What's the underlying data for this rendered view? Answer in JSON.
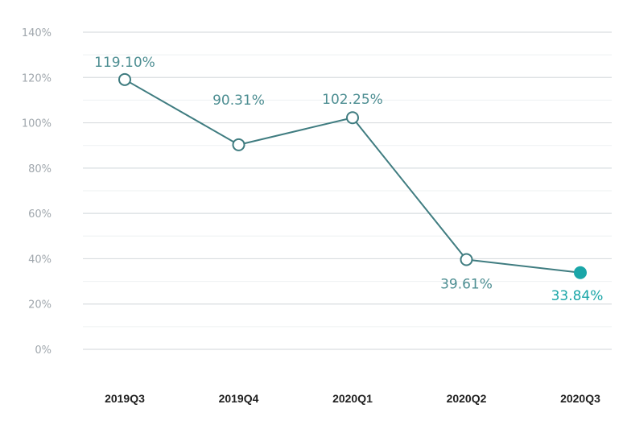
{
  "chart_data": {
    "type": "line",
    "categories": [
      "2019Q3",
      "2019Q4",
      "2020Q1",
      "2020Q2",
      "2020Q3"
    ],
    "values": [
      119.1,
      90.31,
      102.25,
      39.61,
      33.84
    ],
    "data_labels": [
      "119.10%",
      "90.31%",
      "102.25%",
      "39.61%",
      "33.84%"
    ],
    "yticks": [
      {
        "value": 0,
        "label": "0%"
      },
      {
        "value": 20,
        "label": "20%"
      },
      {
        "value": 40,
        "label": "40%"
      },
      {
        "value": 60,
        "label": "60%"
      },
      {
        "value": 80,
        "label": "80%"
      },
      {
        "value": 100,
        "label": "100%"
      },
      {
        "value": 120,
        "label": "120%"
      },
      {
        "value": 140,
        "label": "140%"
      }
    ],
    "ylim": [
      0,
      140
    ],
    "grid": true,
    "highlighted_category": "2020Q3",
    "colors": {
      "line": "#3f7c80",
      "label": "#4d8e92",
      "highlight": "#1aa6a8",
      "grid_major": "#d9dde0",
      "grid_minor": "#eef0f2",
      "axis_tick": "#1f1f1f"
    }
  }
}
